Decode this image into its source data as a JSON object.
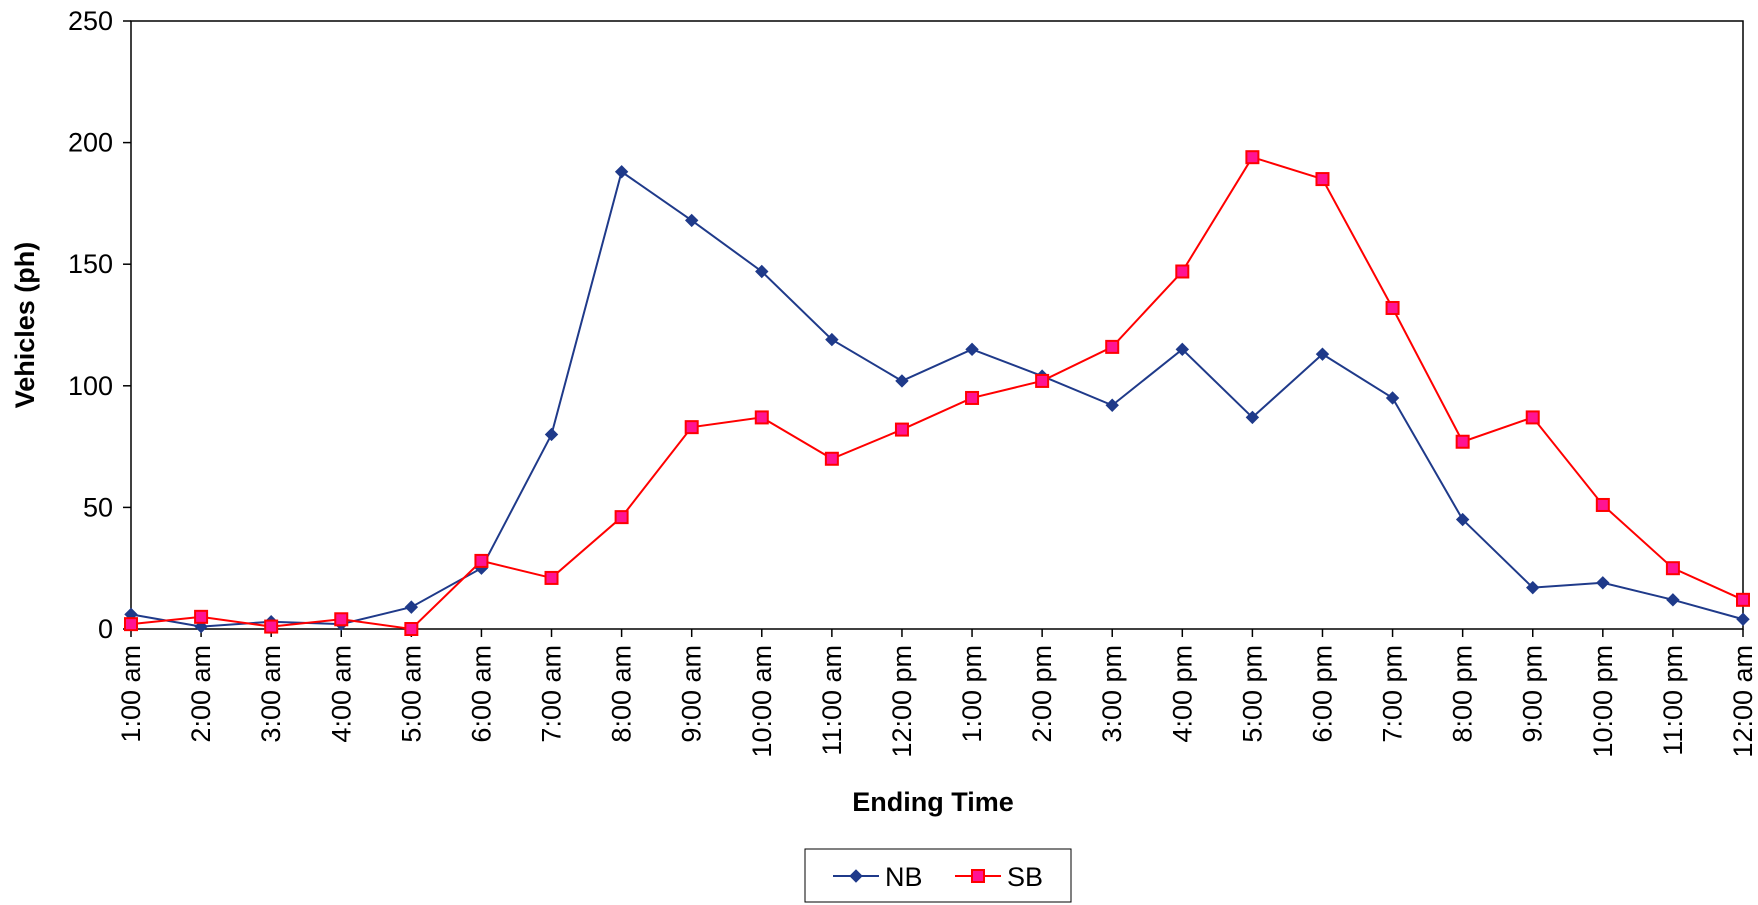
{
  "chart_data": {
    "type": "line",
    "title": "",
    "xlabel": "Ending Time",
    "ylabel": "Vehicles (ph)",
    "ylim": [
      0,
      250
    ],
    "yticks": [
      0,
      50,
      100,
      150,
      200,
      250
    ],
    "grid": false,
    "legend_position": "bottom-center",
    "categories": [
      "1:00 am",
      "2:00 am",
      "3:00 am",
      "4:00 am",
      "5:00 am",
      "6:00 am",
      "7:00 am",
      "8:00 am",
      "9:00 am",
      "10:00 am",
      "11:00 am",
      "12:00 pm",
      "1:00 pm",
      "2:00 pm",
      "3:00 pm",
      "4:00 pm",
      "5:00 pm",
      "6:00 pm",
      "7:00 pm",
      "8:00 pm",
      "9:00 pm",
      "10:00 pm",
      "11:00 pm",
      "12:00 am"
    ],
    "series": [
      {
        "name": "NB",
        "color": "#1F3A8A",
        "marker": "diamond",
        "values": [
          6,
          1,
          3,
          2,
          9,
          25,
          80,
          188,
          168,
          147,
          119,
          102,
          115,
          104,
          92,
          115,
          87,
          113,
          95,
          45,
          17,
          19,
          12,
          4
        ]
      },
      {
        "name": "SB",
        "color": "#FF0000",
        "marker_fill": "#FF1493",
        "marker": "square",
        "values": [
          2,
          5,
          1,
          4,
          0,
          28,
          21,
          46,
          83,
          87,
          70,
          82,
          95,
          102,
          116,
          147,
          194,
          185,
          132,
          77,
          87,
          51,
          25,
          12
        ]
      }
    ]
  }
}
